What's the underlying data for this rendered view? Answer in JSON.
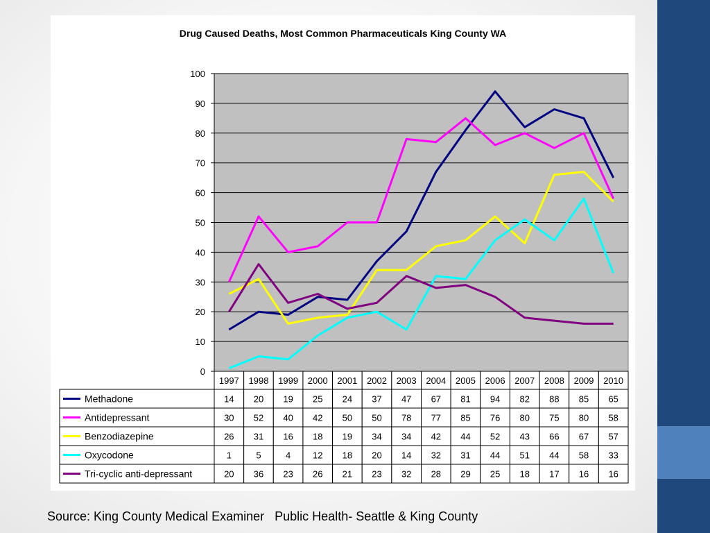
{
  "chart_data": {
    "type": "line",
    "title": "Drug Caused Deaths, Most Common Pharmaceuticals  King County WA",
    "categories": [
      "1997",
      "1998",
      "1999",
      "2000",
      "2001",
      "2002",
      "2003",
      "2004",
      "2005",
      "2006",
      "2007",
      "2008",
      "2009",
      "2010"
    ],
    "ylim": [
      0,
      100
    ],
    "yticks": [
      0,
      10,
      20,
      30,
      40,
      50,
      60,
      70,
      80,
      90,
      100
    ],
    "grid": true,
    "legend": "data-table-left",
    "series": [
      {
        "name": "Methadone",
        "color": "#000080",
        "values": [
          14,
          20,
          19,
          25,
          24,
          37,
          47,
          67,
          81,
          94,
          82,
          88,
          85,
          65
        ]
      },
      {
        "name": "Antidepressant",
        "color": "#ff00ff",
        "values": [
          30,
          52,
          40,
          42,
          50,
          50,
          78,
          77,
          85,
          76,
          80,
          75,
          80,
          58
        ]
      },
      {
        "name": "Benzodiazepine",
        "color": "#ffff00",
        "values": [
          26,
          31,
          16,
          18,
          19,
          34,
          34,
          42,
          44,
          52,
          43,
          66,
          67,
          57
        ]
      },
      {
        "name": "Oxycodone",
        "color": "#00ffff",
        "values": [
          1,
          5,
          4,
          12,
          18,
          20,
          14,
          32,
          31,
          44,
          51,
          44,
          58,
          33
        ]
      },
      {
        "name": "Tri-cyclic anti-depressant",
        "color": "#800080",
        "values": [
          20,
          36,
          23,
          26,
          21,
          23,
          32,
          28,
          29,
          25,
          18,
          17,
          16,
          16
        ]
      }
    ]
  },
  "colors": {
    "plot_background": "#c0c0c0",
    "slide_accent_dark": "#1f497d",
    "slide_accent_light": "#4f81bd"
  },
  "source": "Source: King County Medical Examiner   Public Health- Seattle & King County"
}
